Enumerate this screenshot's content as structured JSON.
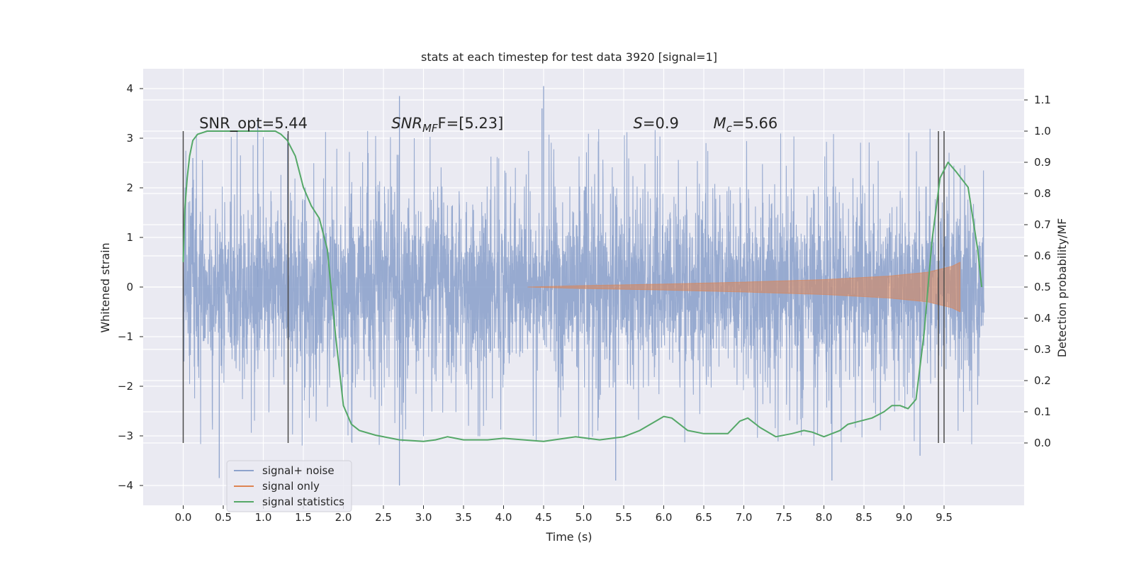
{
  "chart_data": {
    "type": "line",
    "title": "stats at each timestep for test data 3920 [signal=1]",
    "xlabel": "Time (s)",
    "ylabel_left": "Whitened strain",
    "ylabel_right": "Detection probability/MF",
    "xlim": [
      -0.5,
      10.5
    ],
    "ylim_left": [
      -4.4,
      4.4
    ],
    "ylim_right": [
      -0.2,
      1.2
    ],
    "x_ticks": [
      0.0,
      0.5,
      1.0,
      1.5,
      2.0,
      2.5,
      3.0,
      3.5,
      4.0,
      4.5,
      5.0,
      5.5,
      6.0,
      6.5,
      7.0,
      7.5,
      8.0,
      8.5,
      9.0,
      9.5
    ],
    "y_ticks_left": [
      -4,
      -3,
      -2,
      -1,
      0,
      1,
      2,
      3,
      4
    ],
    "y_ticks_right": [
      0.0,
      0.1,
      0.2,
      0.3,
      0.4,
      0.5,
      0.6,
      0.7,
      0.8,
      0.9,
      1.0,
      1.1
    ],
    "grid": true,
    "legend_position": "lower-left",
    "annotations": [
      {
        "text_parts": [
          {
            "t": "SNR_opt=5.44",
            "italic": false
          }
        ],
        "x": 0.2
      },
      {
        "text_parts": [
          {
            "t": "SNR",
            "italic": true
          },
          {
            "t": "MF",
            "italic": true,
            "sub": true
          },
          {
            "t": "F=[5.23]",
            "italic": false
          }
        ],
        "x": 2.6
      },
      {
        "text_parts": [
          {
            "t": "S",
            "italic": true
          },
          {
            "t": "=0.9",
            "italic": false
          }
        ],
        "x": 5.62
      },
      {
        "text_parts": [
          {
            "t": "M",
            "italic": true
          },
          {
            "t": "c",
            "italic": true,
            "sub": true
          },
          {
            "t": "=5.66",
            "italic": false
          }
        ],
        "x": 6.62
      }
    ],
    "vertical_lines_x": [
      0.0,
      1.31,
      9.43,
      9.5
    ],
    "series": [
      {
        "name": "signal+ noise",
        "color": "#8ea3cc",
        "kind": "noise",
        "x_range": [
          0.0,
          10.0
        ],
        "band": {
          "core": 1.35,
          "peak_max": 4.05,
          "peak_min": -4.0
        },
        "notable_peaks": [
          [
            0.12,
            2.6
          ],
          [
            0.93,
            3.4
          ],
          [
            2.7,
            3.85
          ],
          [
            4.5,
            4.05
          ],
          [
            4.48,
            3.6
          ],
          [
            0.45,
            -3.85
          ],
          [
            2.7,
            -4.0
          ],
          [
            5.4,
            -3.9
          ],
          [
            8.1,
            -3.9
          ],
          [
            9.2,
            -3.4
          ]
        ]
      },
      {
        "name": "signal only",
        "color": "#dd8452",
        "kind": "chirp",
        "x_range": [
          4.3,
          9.7
        ],
        "amplitude": [
          [
            4.3,
            0.0
          ],
          [
            5.0,
            0.03
          ],
          [
            6.0,
            0.06
          ],
          [
            7.0,
            0.1
          ],
          [
            8.0,
            0.15
          ],
          [
            8.8,
            0.22
          ],
          [
            9.3,
            0.3
          ],
          [
            9.6,
            0.42
          ],
          [
            9.7,
            0.5
          ]
        ]
      },
      {
        "name": "signal statistics",
        "color": "#55a868",
        "axis": "right",
        "x": [
          0.0,
          0.02,
          0.05,
          0.08,
          0.12,
          0.18,
          0.3,
          0.5,
          0.8,
          1.0,
          1.15,
          1.22,
          1.3,
          1.4,
          1.5,
          1.6,
          1.7,
          1.8,
          1.9,
          2.0,
          2.1,
          2.2,
          2.4,
          2.7,
          3.0,
          3.15,
          3.3,
          3.5,
          3.8,
          4.0,
          4.5,
          4.9,
          5.2,
          5.5,
          5.7,
          5.9,
          6.0,
          6.1,
          6.3,
          6.5,
          6.8,
          6.95,
          7.05,
          7.2,
          7.4,
          7.6,
          7.75,
          7.85,
          8.0,
          8.2,
          8.3,
          8.45,
          8.6,
          8.75,
          8.85,
          8.95,
          9.05,
          9.15,
          9.25,
          9.35,
          9.45,
          9.55,
          9.65,
          9.8,
          9.92,
          9.97
        ],
        "y": [
          0.58,
          0.75,
          0.85,
          0.92,
          0.97,
          0.99,
          1.0,
          1.0,
          1.0,
          1.0,
          1.0,
          0.99,
          0.97,
          0.92,
          0.82,
          0.76,
          0.72,
          0.62,
          0.35,
          0.12,
          0.06,
          0.04,
          0.025,
          0.01,
          0.005,
          0.01,
          0.02,
          0.01,
          0.01,
          0.015,
          0.005,
          0.02,
          0.01,
          0.02,
          0.04,
          0.07,
          0.085,
          0.08,
          0.04,
          0.03,
          0.03,
          0.07,
          0.08,
          0.05,
          0.02,
          0.03,
          0.04,
          0.035,
          0.02,
          0.04,
          0.06,
          0.07,
          0.08,
          0.1,
          0.12,
          0.12,
          0.11,
          0.14,
          0.35,
          0.65,
          0.85,
          0.9,
          0.87,
          0.82,
          0.62,
          0.5
        ]
      }
    ]
  }
}
